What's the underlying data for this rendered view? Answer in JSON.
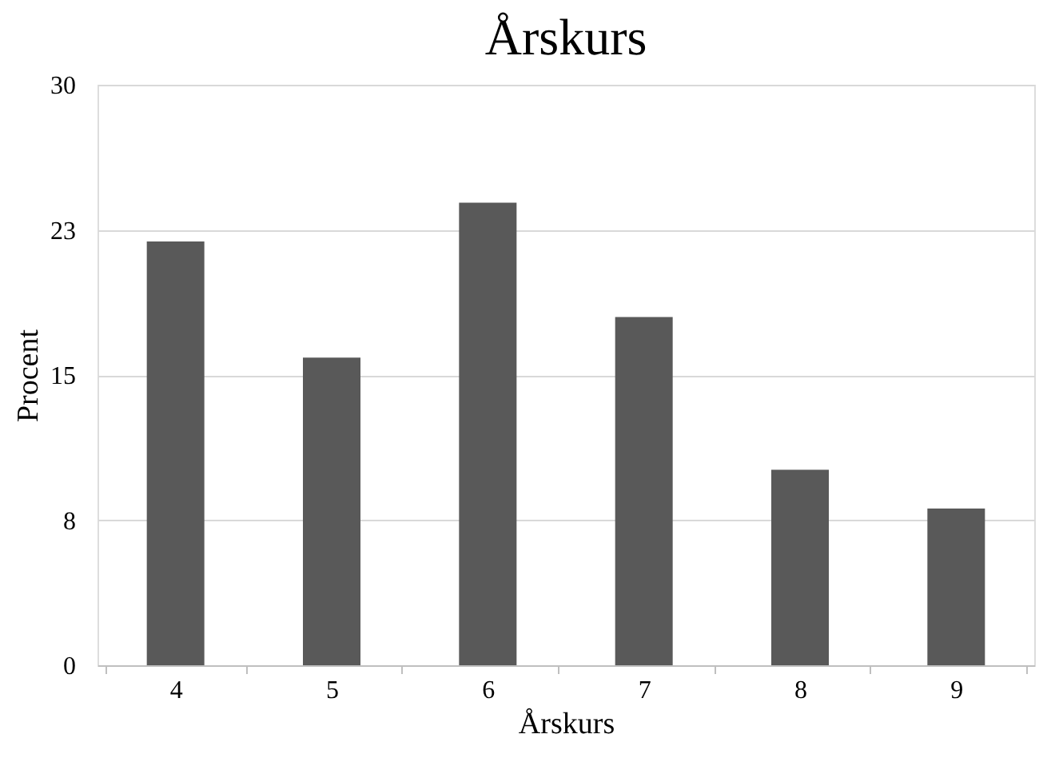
{
  "chart_data": {
    "type": "bar",
    "title": "Årskurs",
    "xlabel": "Årskurs",
    "ylabel": "Procent",
    "categories": [
      "4",
      "5",
      "6",
      "7",
      "8",
      "9"
    ],
    "values": [
      21.9,
      15.9,
      23.9,
      18.0,
      10.1,
      8.1
    ],
    "color": "#595959",
    "ylim": [
      0,
      30
    ],
    "yticks": [
      0,
      {
        "value": 7.5,
        "label": "8"
      },
      15,
      {
        "value": 22.5,
        "label": "23"
      },
      30
    ],
    "grid": "y"
  }
}
